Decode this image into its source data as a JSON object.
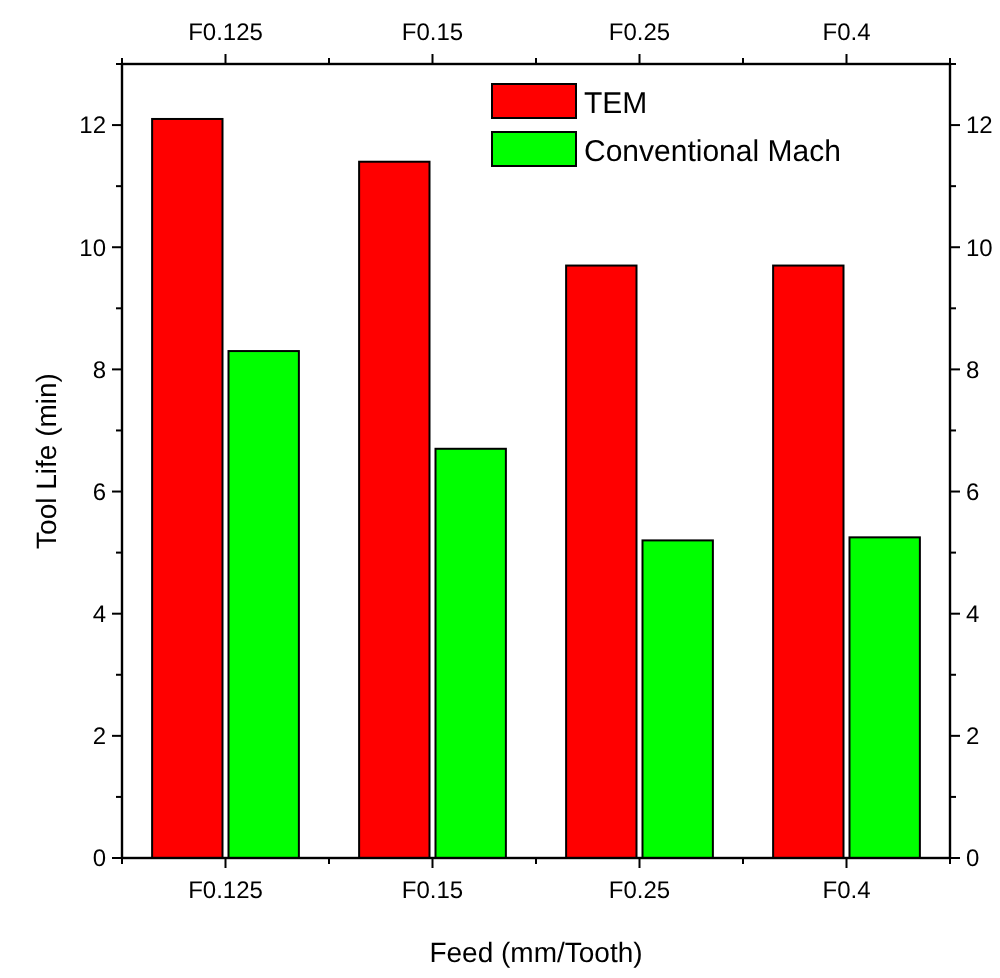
{
  "chart_data": {
    "type": "bar",
    "xlabel": "Feed (mm/Tooth)",
    "ylabel": "Tool Life (min)",
    "categories": [
      "F0.125",
      "F0.15",
      "F0.25",
      "F0.4"
    ],
    "series": [
      {
        "name": "TEM",
        "color": "#ff0000",
        "values": [
          12.1,
          11.4,
          9.7,
          9.7
        ]
      },
      {
        "name": "Conventional Mach",
        "color": "#00ff00",
        "values": [
          8.3,
          6.7,
          5.2,
          5.25
        ]
      }
    ],
    "ylim": [
      0,
      13
    ],
    "yticks": [
      0,
      {
        "value": 1,
        "label": null
      },
      2,
      {
        "value": 3,
        "label": null
      },
      4,
      {
        "value": 5,
        "label": null
      },
      6,
      {
        "value": 7,
        "label": null
      },
      8,
      {
        "value": 9,
        "label": null
      },
      10,
      {
        "value": 11,
        "label": null
      },
      12,
      {
        "value": 13,
        "label": null
      }
    ],
    "y2lim": [
      0,
      13
    ],
    "y2ticks": [
      0,
      {
        "value": 1,
        "label": null
      },
      2,
      {
        "value": 3,
        "label": null
      },
      4,
      {
        "value": 5,
        "label": null
      },
      6,
      {
        "value": 7,
        "label": null
      },
      8,
      {
        "value": 9,
        "label": null
      },
      10,
      {
        "value": 11,
        "label": null
      },
      12,
      {
        "value": 13,
        "label": null
      }
    ],
    "legend": "top right",
    "grid": false
  }
}
